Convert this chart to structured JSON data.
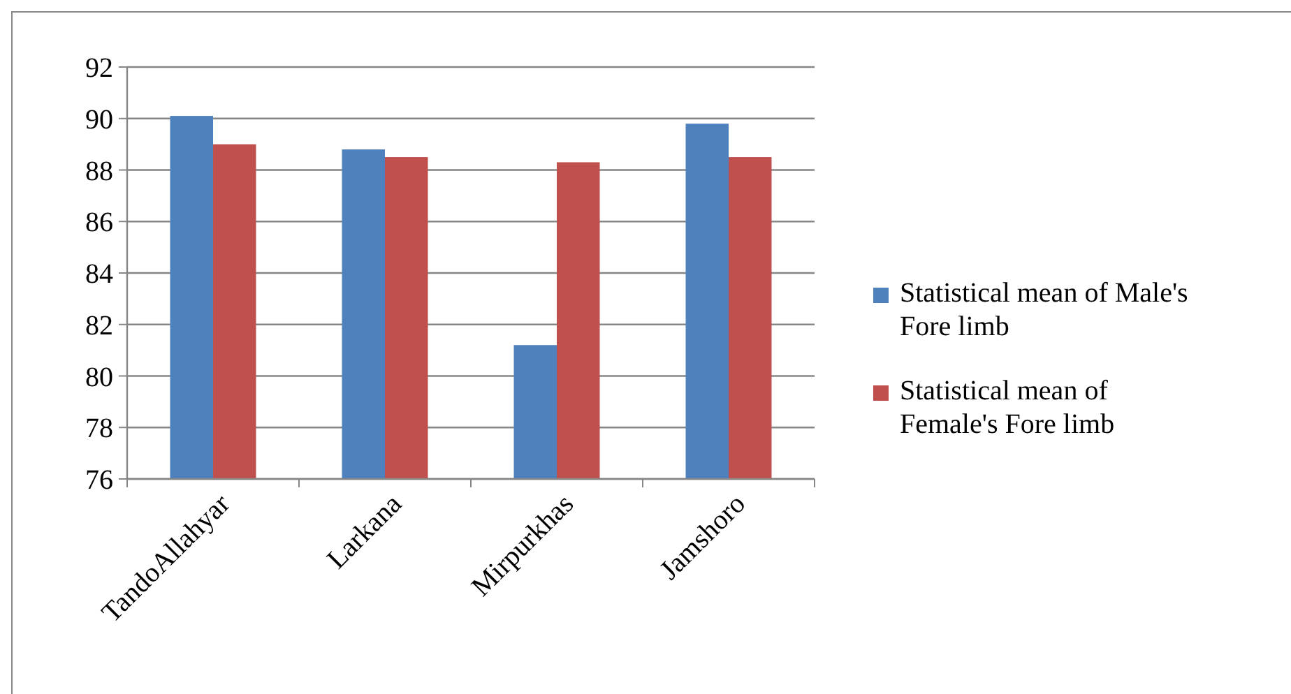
{
  "chart_data": {
    "type": "bar",
    "categories": [
      "TandoAllahyar",
      "Larkana",
      "Mirpurkhas",
      "Jamshoro"
    ],
    "series": [
      {
        "name": "Statistical mean of Male's Fore limb",
        "color": "#4f81bd",
        "values": [
          90.1,
          88.8,
          81.2,
          89.8
        ]
      },
      {
        "name": "Statistical mean of Female's Fore limb",
        "color": "#c0504d",
        "values": [
          89.0,
          88.5,
          88.3,
          88.5
        ]
      }
    ],
    "ylim": [
      76,
      92
    ],
    "yticks": [
      76,
      78,
      80,
      82,
      84,
      86,
      88,
      90,
      92
    ],
    "grid": "y",
    "legend": "right"
  }
}
